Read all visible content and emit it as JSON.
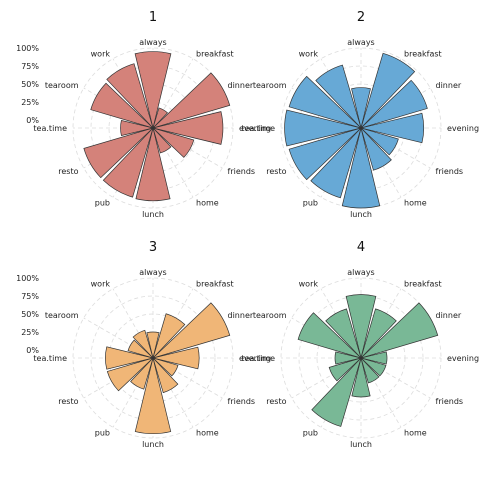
{
  "chart_data": {
    "type": "polar-bar",
    "categories": [
      "always",
      "breakfast",
      "dinner",
      "evening",
      "friends",
      "home",
      "lunch",
      "pub",
      "resto",
      "tea.time",
      "tearoom",
      "work"
    ],
    "radial_ticks": [
      "0%",
      "25%",
      "50%",
      "75%",
      "100%"
    ],
    "rlim": [
      0,
      1
    ],
    "grid": true,
    "panels": [
      {
        "title": "1",
        "color": "#D4827A",
        "values": [
          0.95,
          0.18,
          1.0,
          0.86,
          0.48,
          0.25,
          0.9,
          0.89,
          0.89,
          0.34,
          0.79,
          0.82
        ]
      },
      {
        "title": "2",
        "color": "#67A9D6",
        "values": [
          0.45,
          0.97,
          0.85,
          0.76,
          0.43,
          0.5,
          1.0,
          0.9,
          0.93,
          0.95,
          0.93,
          0.8
        ]
      },
      {
        "title": "3",
        "color": "#F0B677",
        "values": [
          0.25,
          0.53,
          1.0,
          0.53,
          0.25,
          0.39,
          0.94,
          0.34,
          0.55,
          0.55,
          0.25,
          0.29
        ]
      },
      {
        "title": "4",
        "color": "#79B896",
        "values": [
          0.77,
          0.6,
          1.0,
          0.25,
          0.25,
          0.25,
          0.43,
          0.88,
          0.35,
          0.25,
          0.8,
          0.6
        ]
      }
    ]
  }
}
